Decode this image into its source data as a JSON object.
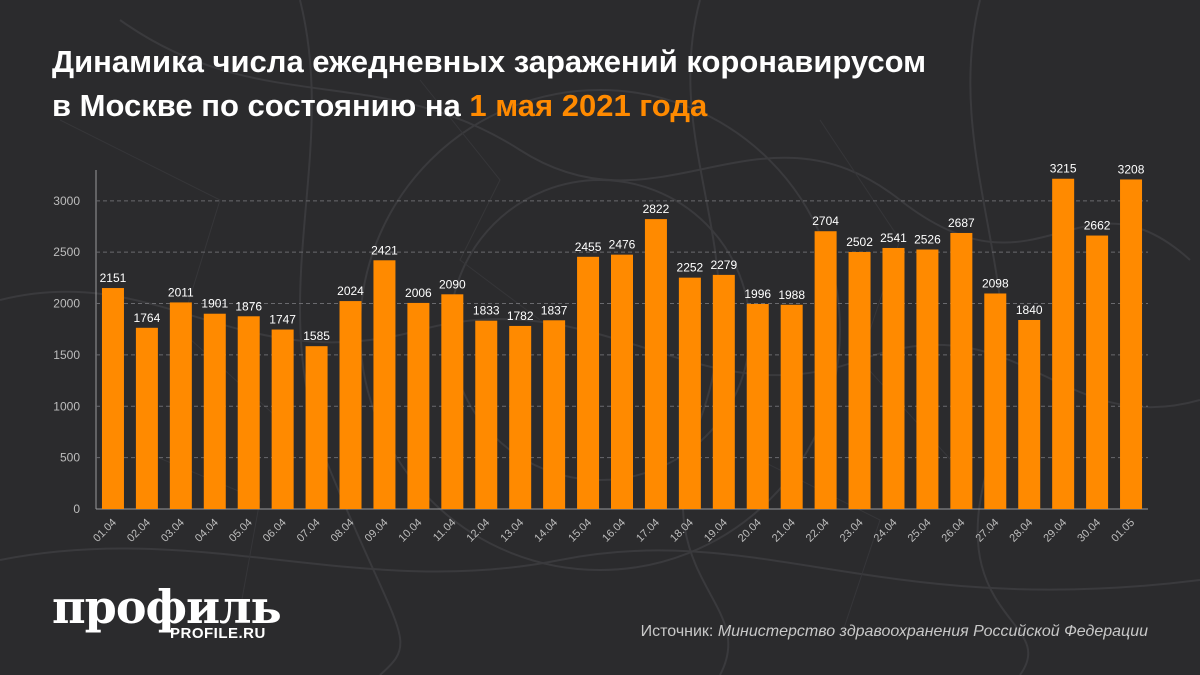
{
  "header": {
    "title_line1": "Динамика числа ежедневных заражений коронавирусом",
    "title_line2_prefix": "в Москве по состоянию на ",
    "title_line2_accent": "1 мая 2021 года"
  },
  "footer": {
    "logo_text": "профиль",
    "logo_domain": "PROFILE.RU",
    "source_label": "Источник: ",
    "source_value": "Министерство здравоохранения Российской Федерации"
  },
  "colors": {
    "background": "#2b2b2d",
    "bar": "#ff8a00",
    "accent": "#ff8a00",
    "text": "#ffffff",
    "axis": "#bdbdbd"
  },
  "chart_data": {
    "type": "bar",
    "title": "",
    "xlabel": "",
    "ylabel": "",
    "ylim": [
      0,
      3300
    ],
    "yticks": [
      0,
      500,
      1000,
      1500,
      2000,
      2500,
      3000
    ],
    "grid": true,
    "legend": "none",
    "categories": [
      "01.04",
      "02.04",
      "03.04",
      "04.04",
      "05.04",
      "06.04",
      "07.04",
      "08.04",
      "09.04",
      "10.04",
      "11.04",
      "12.04",
      "13.04",
      "14.04",
      "15.04",
      "16.04",
      "17.04",
      "18.04",
      "19.04",
      "20.04",
      "21.04",
      "22.04",
      "23.04",
      "24.04",
      "25.04",
      "26.04",
      "27.04",
      "28.04",
      "29.04",
      "30.04",
      "01.05"
    ],
    "values": [
      2151,
      1764,
      2011,
      1901,
      1876,
      1747,
      1585,
      2024,
      2421,
      2006,
      2090,
      1833,
      1782,
      1837,
      2455,
      2476,
      2822,
      2252,
      2279,
      1996,
      1988,
      2704,
      2502,
      2541,
      2526,
      2687,
      2098,
      1840,
      3215,
      2662,
      3208
    ]
  }
}
